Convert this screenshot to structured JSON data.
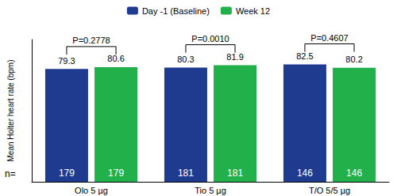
{
  "chart_data": {
    "type": "bar",
    "y_label": "Mean Holter heart rate (bpm)",
    "categories": [
      "Olo 5 µg",
      "Tio 5 µg",
      "T/O 5/5 µg"
    ],
    "series": [
      {
        "name": "Day -1 (Baseline)",
        "color": "#1f3b8f",
        "values": [
          79.3,
          80.3,
          82.5
        ],
        "n": [
          179,
          181,
          146
        ]
      },
      {
        "name": "Week 12",
        "color": "#22b04b",
        "values": [
          80.6,
          81.9,
          80.2
        ],
        "n": [
          179,
          181,
          146
        ]
      }
    ],
    "annotations": [
      "P=0.2778",
      "P=0.0010",
      "P=0.4607"
    ],
    "n_label": "n=",
    "ylim": [
      0,
      100
    ],
    "grid": false,
    "legend": "top",
    "data_labels": true,
    "tick_labels": "x"
  }
}
